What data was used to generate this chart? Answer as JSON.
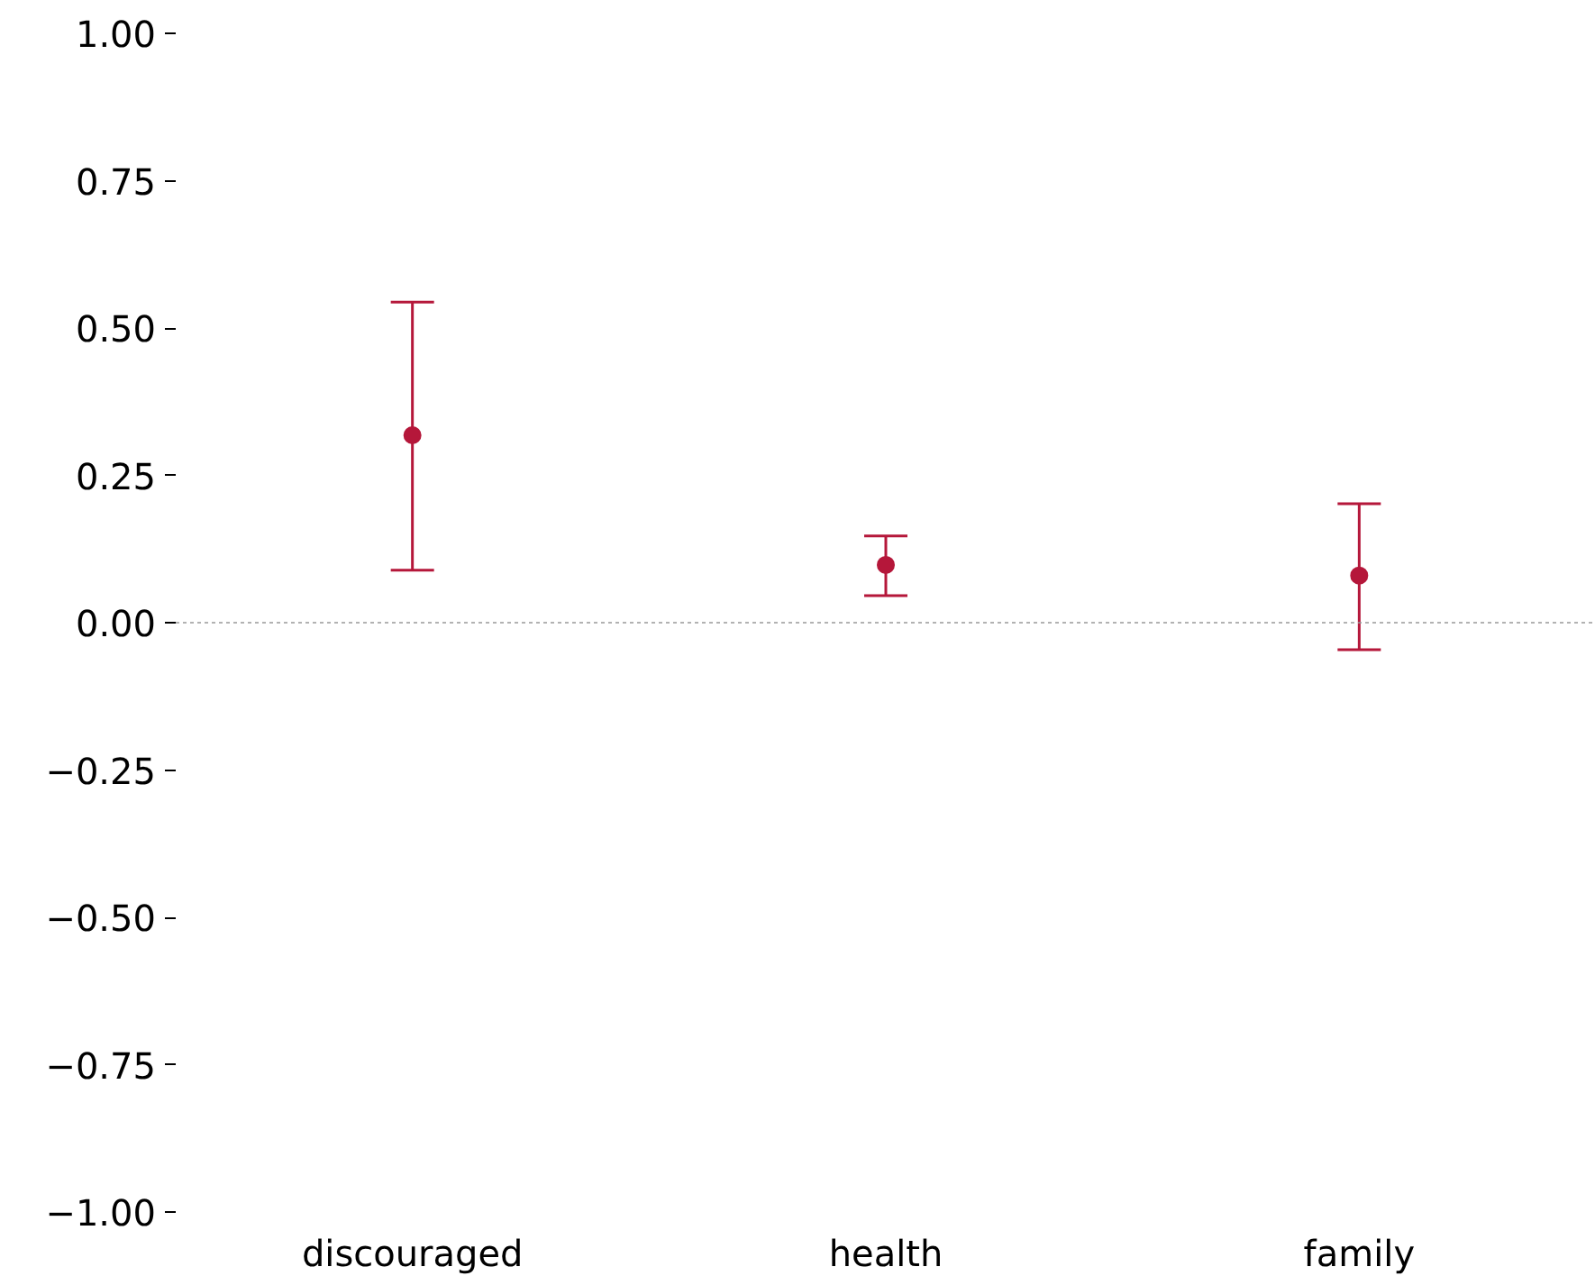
{
  "chart_data": {
    "type": "scatter",
    "categories": [
      "discouraged",
      "health",
      "family"
    ],
    "values": [
      0.318,
      0.098,
      0.08
    ],
    "errors": [
      [
        0.089,
        0.544
      ],
      [
        0.046,
        0.147
      ],
      [
        -0.046,
        0.202
      ]
    ],
    "color": "#b5173a",
    "marker": "circle",
    "grid": false,
    "ylim": [
      -1.0,
      1.0
    ],
    "yticks": [
      {
        "value": -1.0,
        "label": "−1.00"
      },
      {
        "value": -0.75,
        "label": "−0.75"
      },
      {
        "value": -0.5,
        "label": "−0.50"
      },
      {
        "value": -0.25,
        "label": "−0.25"
      },
      {
        "value": 0.0,
        "label": "0.00"
      },
      {
        "value": 0.25,
        "label": "0.25"
      },
      {
        "value": 0.5,
        "label": "0.50"
      },
      {
        "value": 0.75,
        "label": "0.75"
      },
      {
        "value": 1.0,
        "label": "1.00"
      }
    ],
    "ref_lines": [
      {
        "axis": "y",
        "value": 0.0,
        "label": null,
        "color": "#999999",
        "line_style": "dotted"
      }
    ]
  }
}
